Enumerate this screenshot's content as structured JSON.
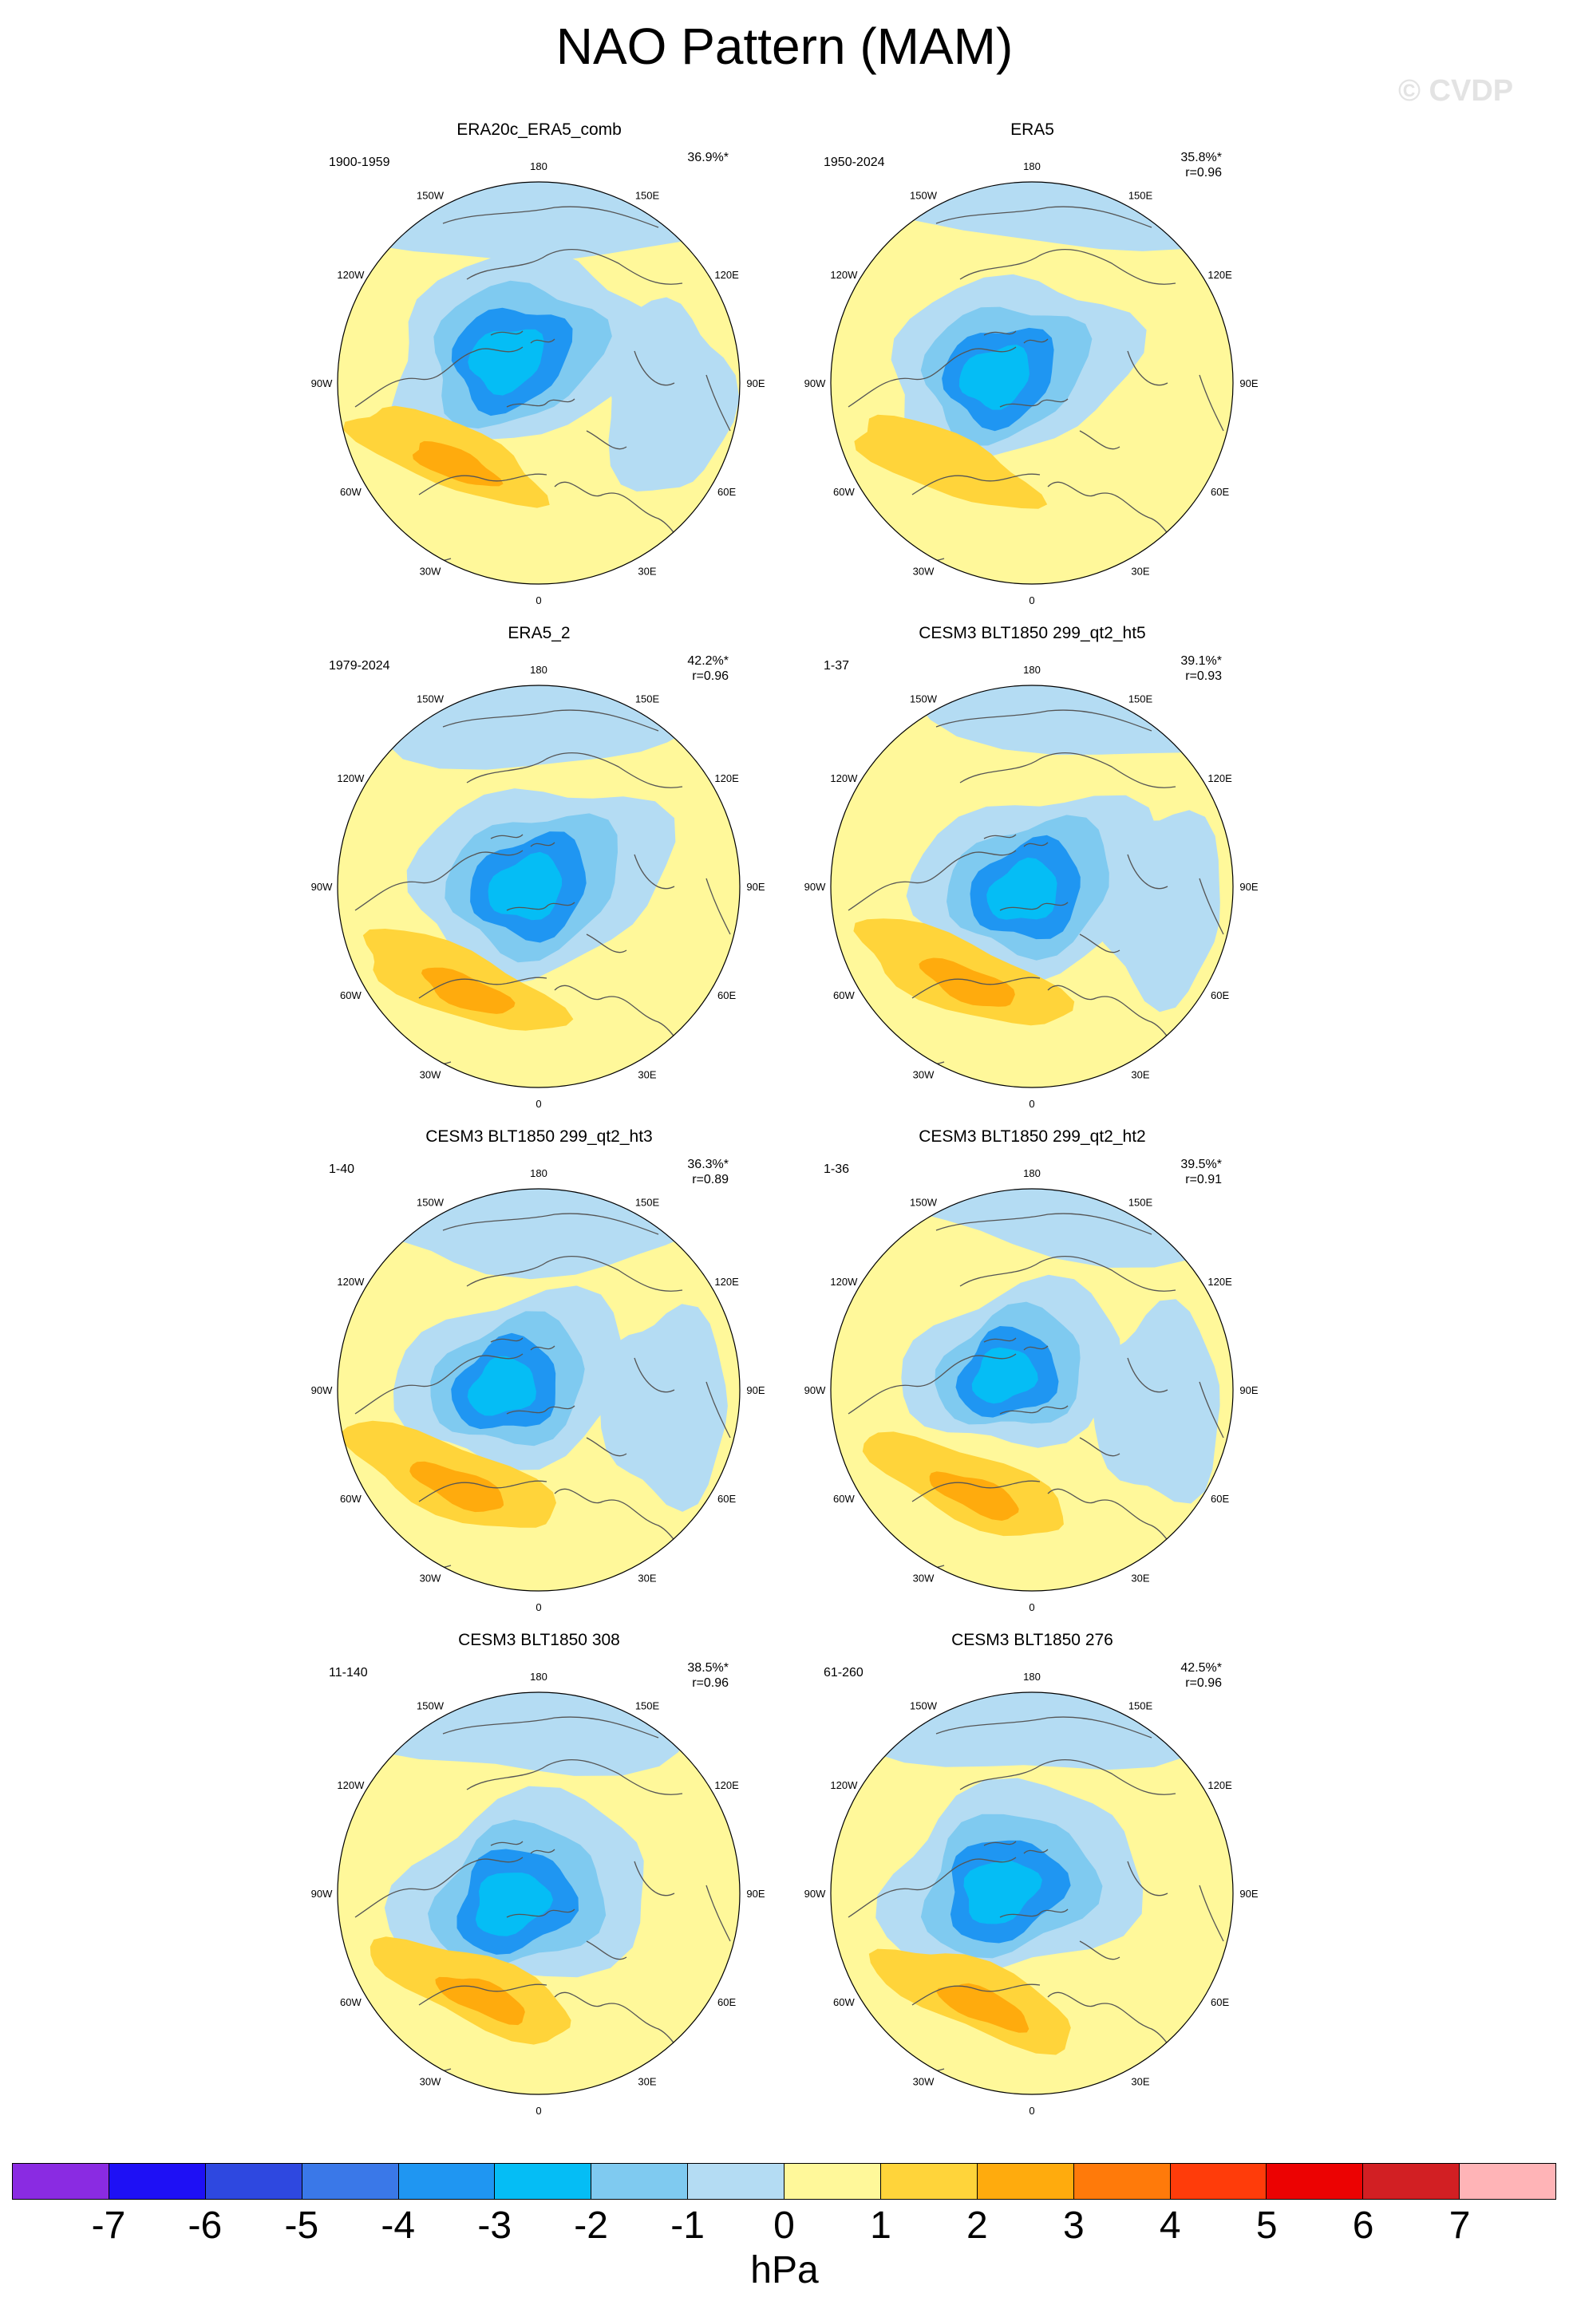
{
  "title": "NAO Pattern (MAM)",
  "watermark": "© CVDP",
  "longitude_labels": [
    "180",
    "150E",
    "120E",
    "90E",
    "60E",
    "30E",
    "0",
    "30W",
    "60W",
    "90W",
    "120W",
    "150W"
  ],
  "panels": [
    {
      "title": "ERA20c_ERA5_comb",
      "years": "1900-1959",
      "pct": "36.9%*",
      "r": ""
    },
    {
      "title": "ERA5",
      "years": "1950-2024",
      "pct": "35.8%*",
      "r": "r=0.96"
    },
    {
      "title": "ERA5_2",
      "years": "1979-2024",
      "pct": "42.2%*",
      "r": "r=0.96"
    },
    {
      "title": "CESM3 BLT1850 299_qt2_ht5",
      "years": "1-37",
      "pct": "39.1%*",
      "r": "r=0.93"
    },
    {
      "title": "CESM3 BLT1850 299_qt2_ht3",
      "years": "1-40",
      "pct": "36.3%*",
      "r": "r=0.89"
    },
    {
      "title": "CESM3 BLT1850 299_qt2_ht2",
      "years": "1-36",
      "pct": "39.5%*",
      "r": "r=0.91"
    },
    {
      "title": "CESM3 BLT1850 308",
      "years": "11-140",
      "pct": "38.5%*",
      "r": "r=0.96"
    },
    {
      "title": "CESM3 BLT1850 276",
      "years": "61-260",
      "pct": "42.5%*",
      "r": "r=0.96"
    }
  ],
  "colorbar": {
    "colors": [
      "#8a2be2",
      "#1e10f5",
      "#2e48e0",
      "#3a78e8",
      "#1f96f2",
      "#05bdf5",
      "#7fcaf0",
      "#b4dcf3",
      "#fff89a",
      "#ffd43a",
      "#ffab0d",
      "#ff7a0a",
      "#ff3c0a",
      "#ec0202",
      "#d21f23",
      "#ffb4b7"
    ],
    "ticks": [
      "-7",
      "-6",
      "-5",
      "-4",
      "-3",
      "-2",
      "-1",
      "0",
      "1",
      "2",
      "3",
      "4",
      "5",
      "6",
      "7"
    ],
    "units": "hPa"
  }
}
